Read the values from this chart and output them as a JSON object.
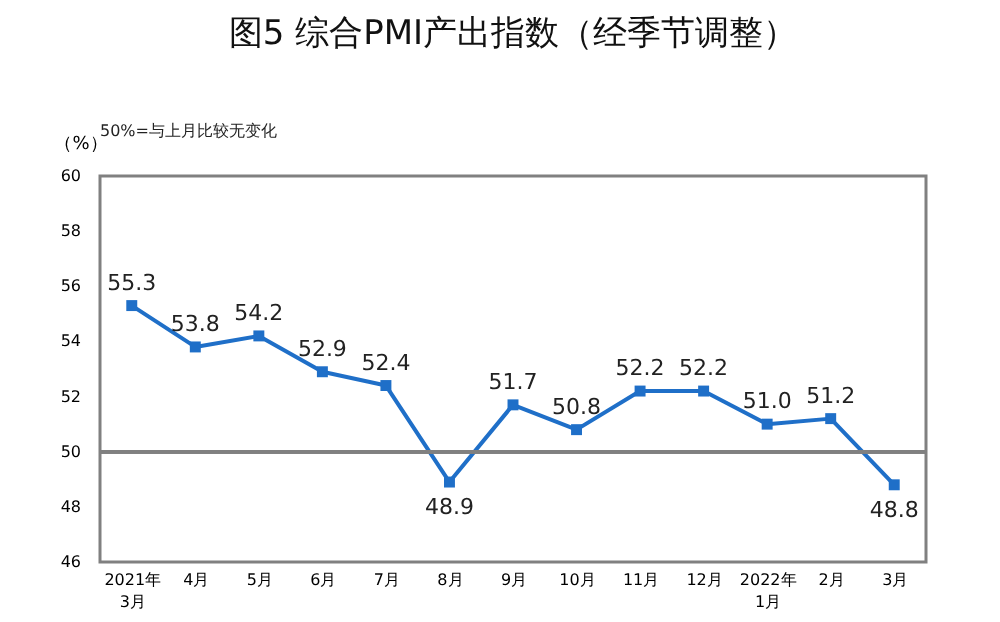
{
  "chart_data": {
    "type": "line",
    "title": "图5 综合PMI产出指数（经季节调整）",
    "ylabel": "（%）",
    "annotations": [
      "50%=与上月比较无变化"
    ],
    "categories": [
      "2021年\n3月",
      "4月",
      "5月",
      "6月",
      "7月",
      "8月",
      "9月",
      "10月",
      "11月",
      "12月",
      "2022年\n1月",
      "2月",
      "3月"
    ],
    "series": [
      {
        "color": "#1f6fc8",
        "values": [
          55.3,
          53.8,
          54.2,
          52.9,
          52.4,
          48.9,
          51.7,
          50.8,
          52.2,
          52.2,
          51.0,
          51.2,
          48.8
        ],
        "value_labels": [
          "55.3",
          "53.8",
          "54.2",
          "52.9",
          "52.4",
          "48.9",
          "51.7",
          "50.8",
          "52.2",
          "52.2",
          "51.0",
          "51.2",
          "48.8"
        ]
      }
    ],
    "ylim": [
      46,
      60
    ],
    "yticks": [
      46,
      48,
      50,
      52,
      54,
      56,
      58,
      60
    ],
    "ref_lines": [
      {
        "axis": "y",
        "value": 50,
        "color": "#808080"
      }
    ],
    "data_labels": true,
    "marker": "square",
    "grid": false,
    "legend": false
  }
}
